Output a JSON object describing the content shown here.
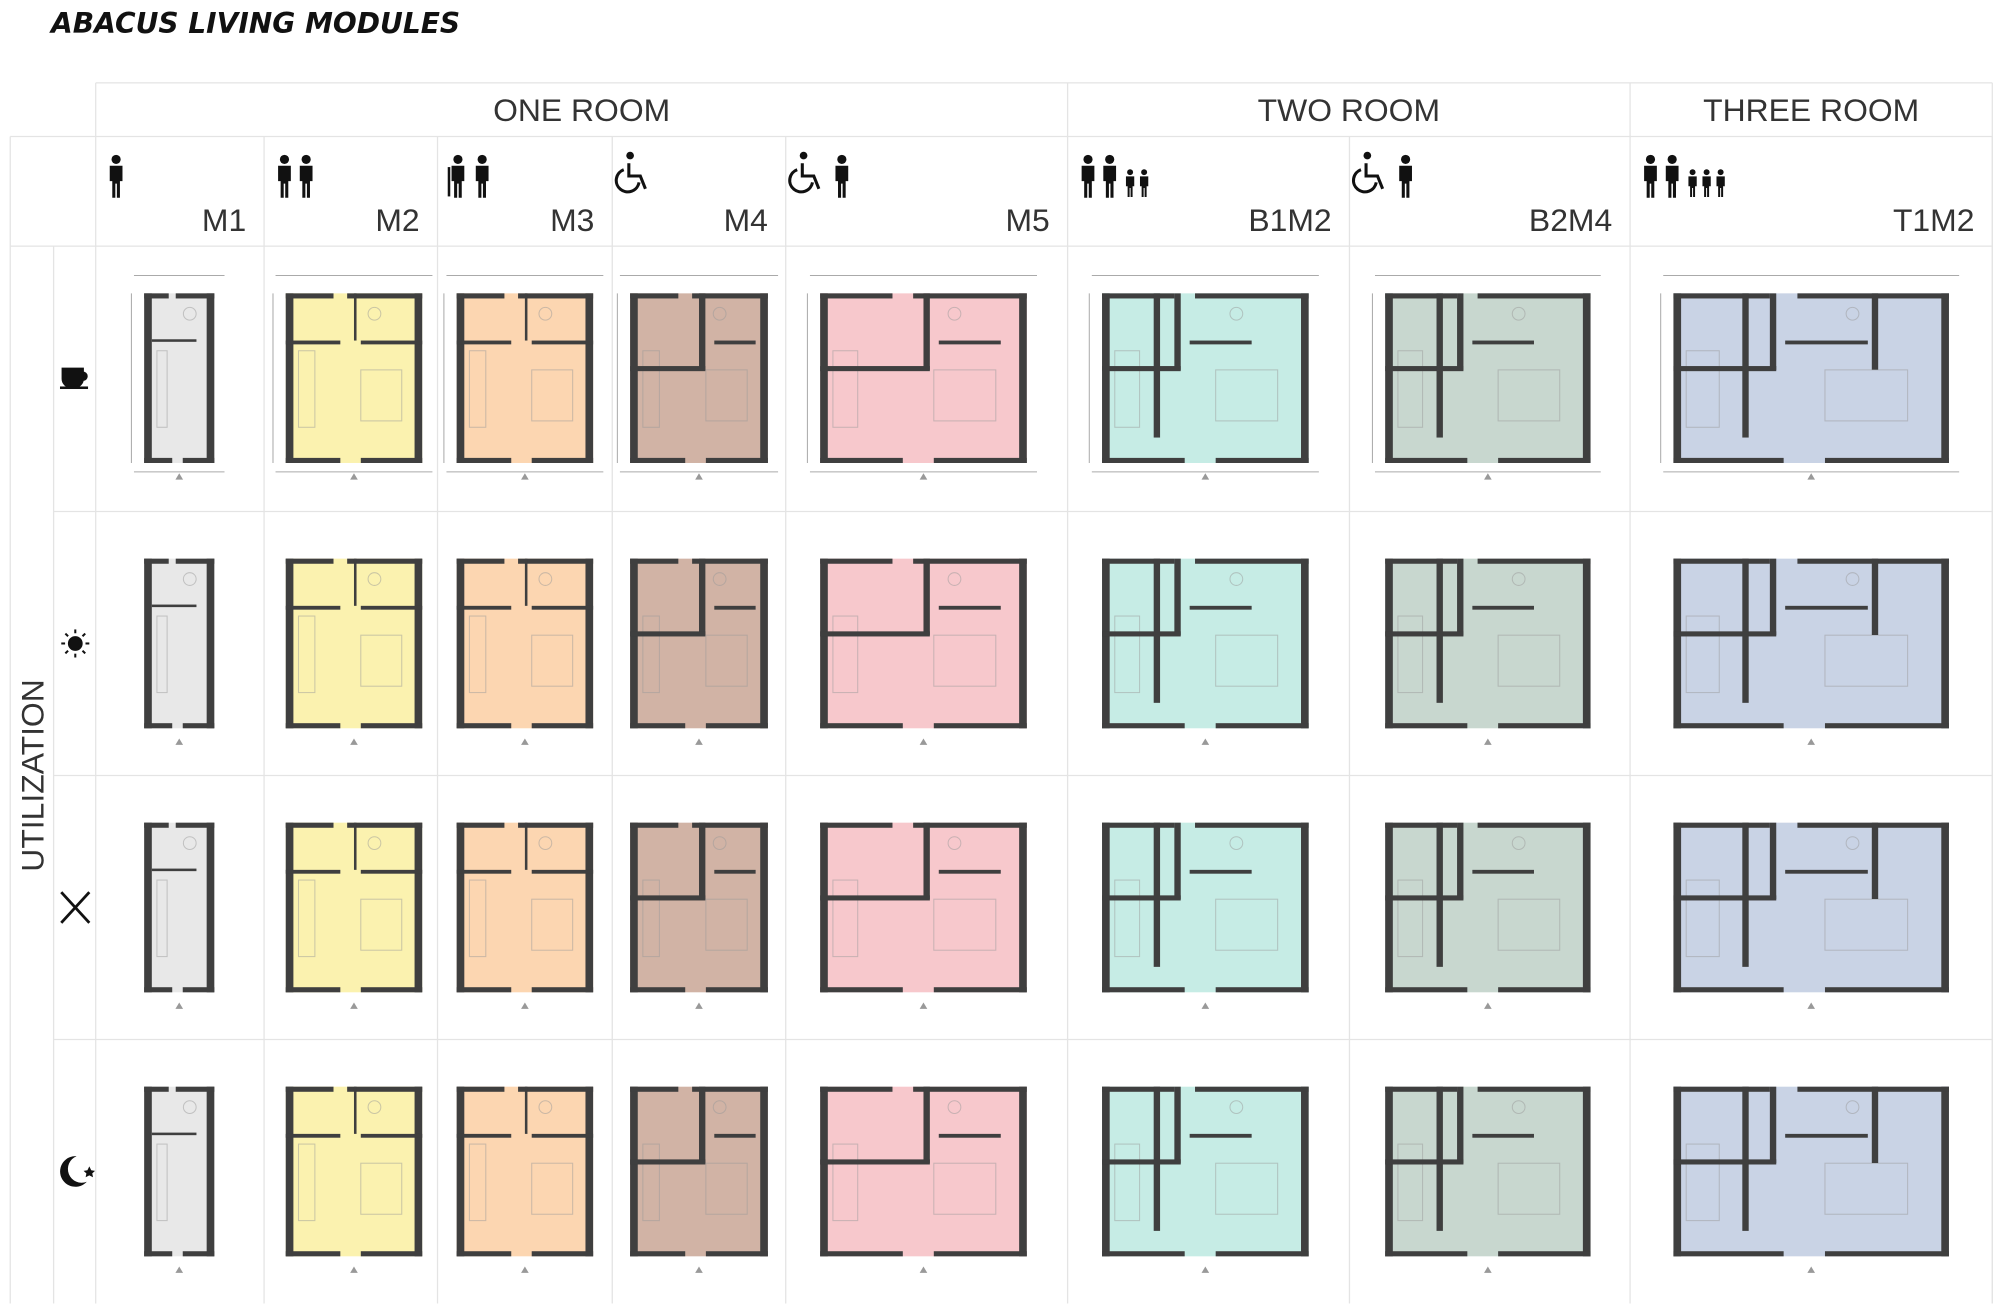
{
  "title": "ABACUS LIVING MODULES",
  "row_label": "UTILIZATION",
  "groups": [
    {
      "label": "ONE ROOM",
      "modules": [
        {
          "label": "M1",
          "color": "#e6e6e6"
        },
        {
          "label": "M2",
          "color": "#fbf1a6"
        },
        {
          "label": "M3",
          "color": "#fcd1a8"
        },
        {
          "label": "M4",
          "color": "#ccab9b"
        },
        {
          "label": "M5",
          "color": "#f6c2c6"
        }
      ]
    },
    {
      "label": "TWO ROOM",
      "modules": [
        {
          "label": "B1M2",
          "color": "#c0eae2"
        },
        {
          "label": "B2M4",
          "color": "#c2d3ca"
        }
      ]
    },
    {
      "label": "THREE ROOM",
      "modules": [
        {
          "label": "T1M2",
          "color": "#c3cee2"
        }
      ]
    }
  ]
}
